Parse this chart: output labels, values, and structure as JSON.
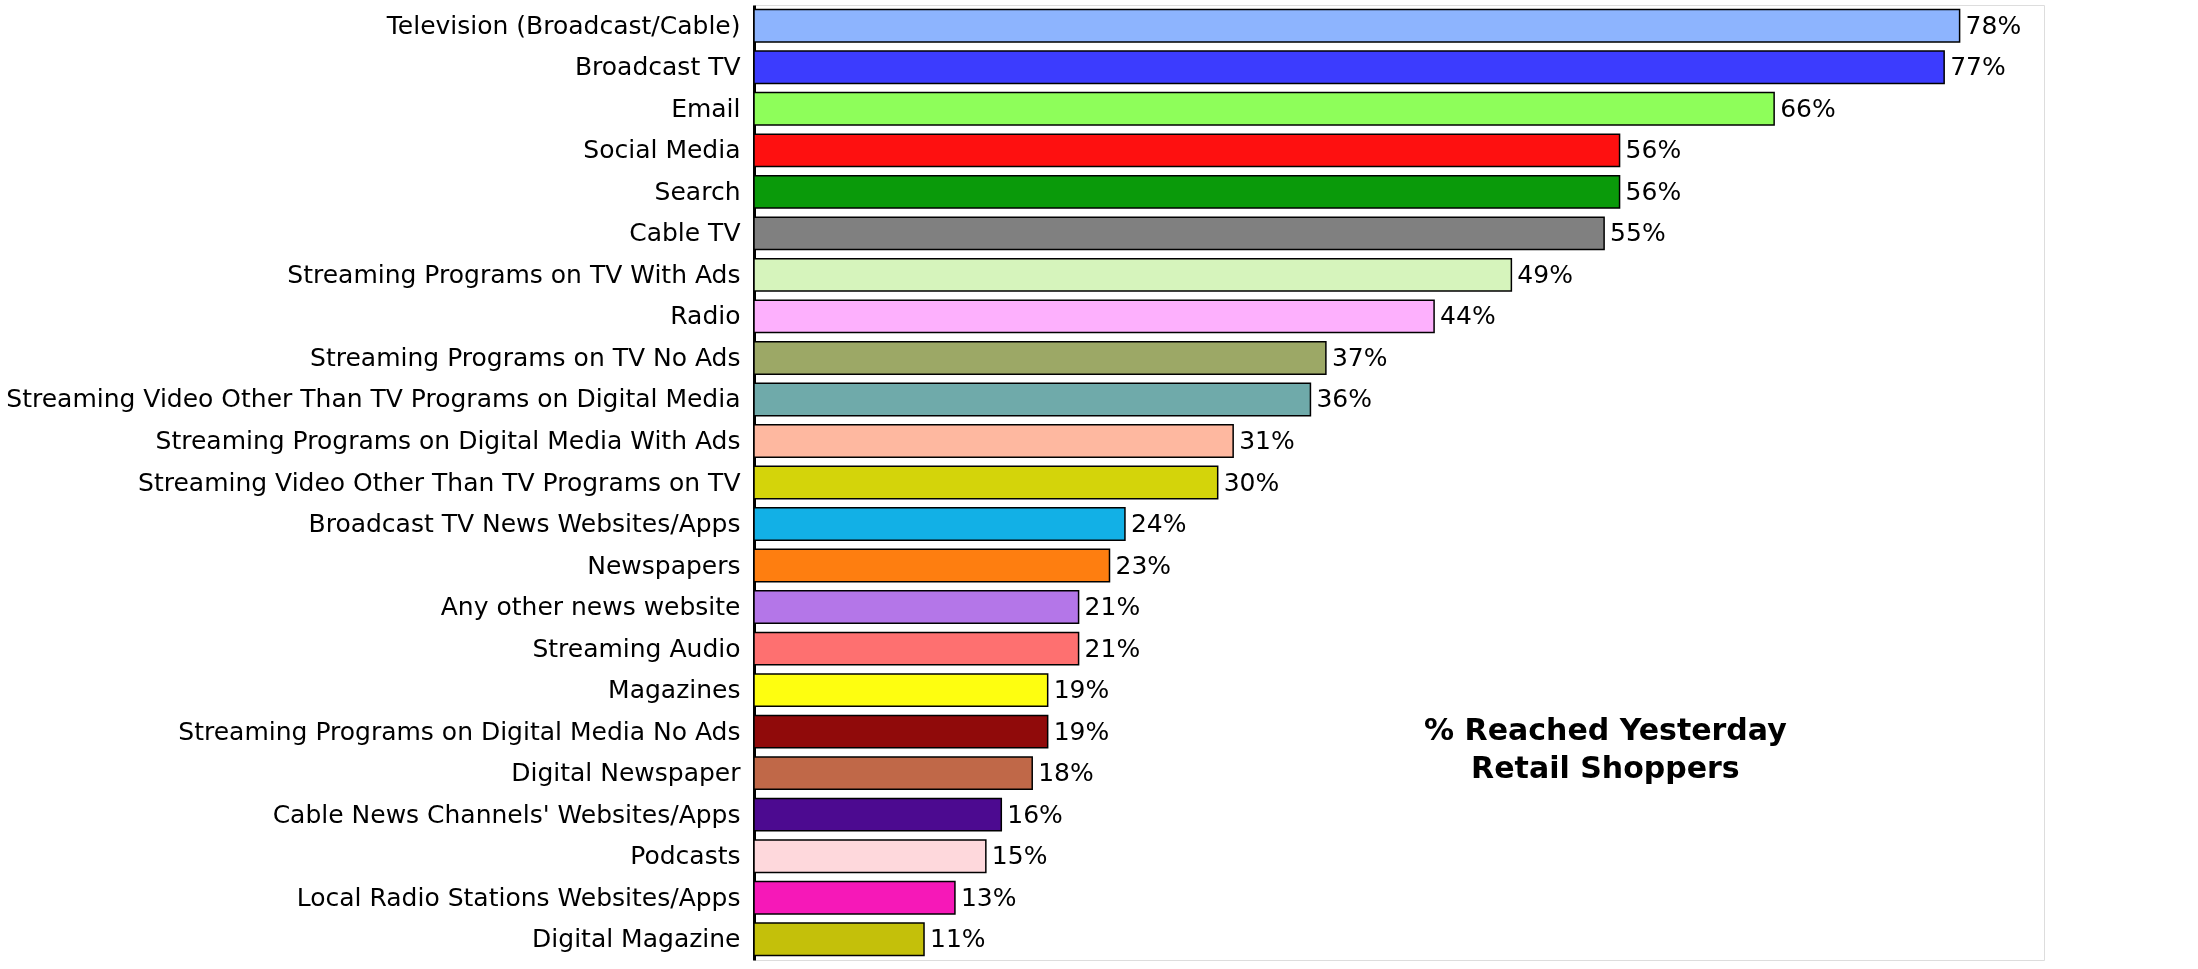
{
  "chart_data": {
    "type": "bar",
    "orientation": "horizontal",
    "title": "% Reached Yesterday\nRetail Shoppers",
    "categories": [
      "Television (Broadcast/Cable)",
      "Broadcast TV",
      "Email",
      "Social Media",
      "Search",
      "Cable TV",
      "Streaming Programs on TV With Ads",
      "Radio",
      "Streaming Programs on TV No Ads",
      "Streaming Video Other Than TV Programs on Digital Media",
      "Streaming Programs on Digital Media With Ads",
      "Streaming Video Other Than TV Programs on TV",
      "Broadcast TV News Websites/Apps",
      "Newspapers",
      "Any other news website",
      "Streaming Audio",
      "Magazines",
      "Streaming Programs on Digital Media No Ads",
      "Digital Newspaper",
      "Cable News Channels' Websites/Apps",
      "Podcasts",
      "Local Radio Stations Websites/Apps",
      "Digital Magazine"
    ],
    "values": [
      78,
      77,
      66,
      56,
      56,
      55,
      49,
      44,
      37,
      36,
      31,
      30,
      24,
      23,
      21,
      21,
      19,
      19,
      18,
      16,
      15,
      13,
      11
    ],
    "value_labels": [
      "78%",
      "77%",
      "66%",
      "56%",
      "56%",
      "55%",
      "49%",
      "44%",
      "37%",
      "36%",
      "31%",
      "30%",
      "24%",
      "23%",
      "21%",
      "21%",
      "19%",
      "19%",
      "18%",
      "16%",
      "15%",
      "13%",
      "11%"
    ],
    "colors": [
      "#8db4fe",
      "#3c3cfe",
      "#8efe5a",
      "#fe1010",
      "#0a9a0a",
      "#808080",
      "#d6f4bc",
      "#fdb0fd",
      "#9ca866",
      "#6faaaa",
      "#feb8a0",
      "#d4d40a",
      "#12b0e6",
      "#fe7e10",
      "#b476e8",
      "#fe7070",
      "#fefe10",
      "#900a0a",
      "#c06848",
      "#4c0a90",
      "#fed8dc",
      "#f618b8",
      "#c4c00a"
    ],
    "legend": false,
    "grid": false
  }
}
